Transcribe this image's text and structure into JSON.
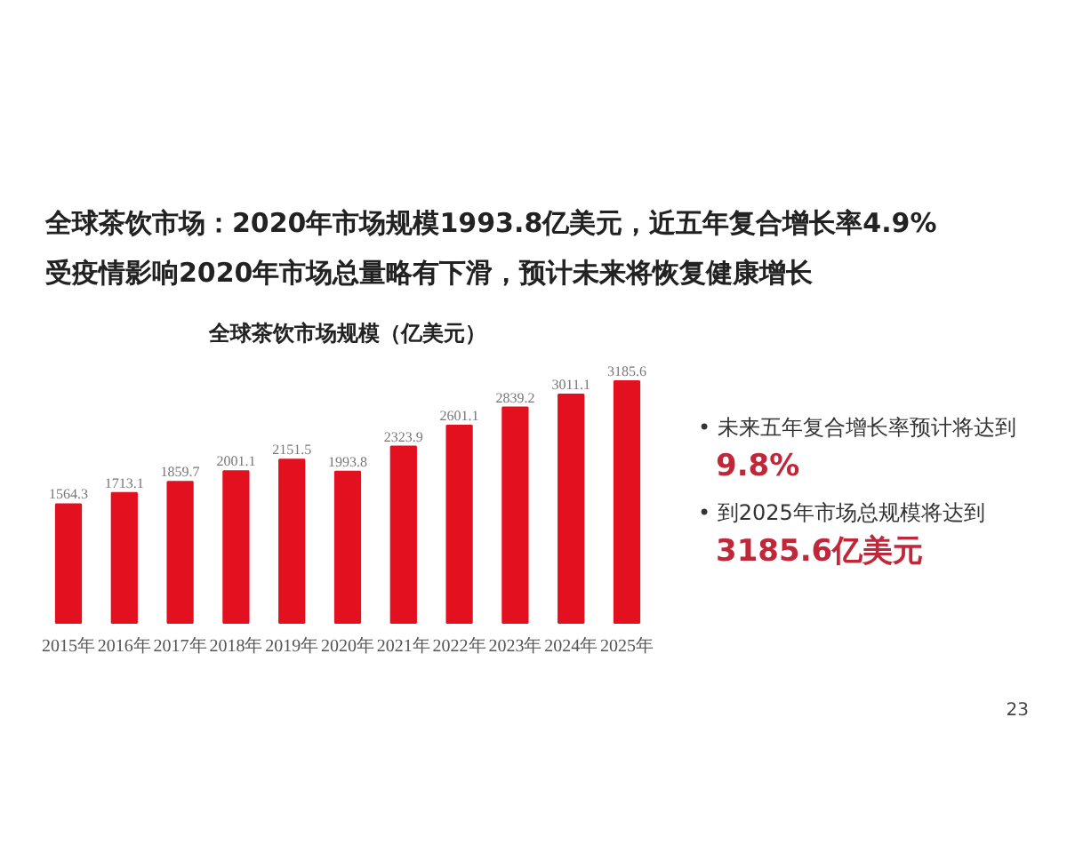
{
  "chart_data": {
    "type": "bar",
    "title": "全球茶饮市场：2020年市场规模1993.8亿美元，近五年复合增长率4.9%",
    "subtitle": "受疫情影响2020年市场总量略有下滑，预计未来将恢复健康增长",
    "categories": [
      "2015年",
      "2016年",
      "2017年",
      "2018年",
      "2019年",
      "2020年",
      "2021年",
      "2022年",
      "2023年",
      "2024年",
      "2025年"
    ],
    "values": [
      1564.3,
      1713.1,
      1859.7,
      2001.1,
      2151.5,
      1993.8,
      2323.9,
      2601.1,
      2839.2,
      3011.1,
      3185.6
    ],
    "color": "#e3101f",
    "data_labels": true,
    "annotations": [
      "全球茶饮市场规模（亿美元）",
      "• 未来五年复合增长率预计将达到",
      "9.8%",
      "• 到2025年市场总规模将达到",
      "3185.6亿美元",
      "23"
    ]
  }
}
